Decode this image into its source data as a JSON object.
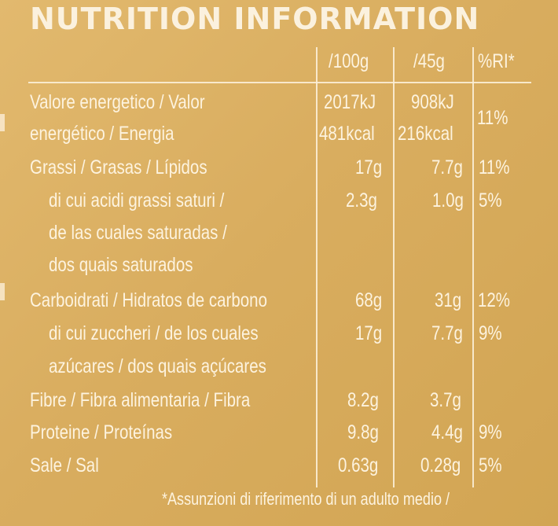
{
  "title": "NUTRITION INFORMATION",
  "header": {
    "col_100g": "/100g",
    "col_45g": "/45g",
    "col_ri": "%RI*"
  },
  "rows": [
    {
      "label_lines": [
        "Valore energetico / Valor",
        "energético / Energia"
      ],
      "v100": [
        "2017kJ",
        "481kcal"
      ],
      "v45": [
        "908kJ",
        "216kcal"
      ],
      "ri": "11%"
    },
    {
      "label_lines": [
        "Grassi / Grasas / Lípidos"
      ],
      "v100": [
        "17g"
      ],
      "v45": [
        "7.7g"
      ],
      "ri": "11%"
    },
    {
      "label_lines": [
        "di cui acidi grassi saturi /",
        "de las cuales saturadas /",
        "dos quais saturados"
      ],
      "v100": [
        "2.3g"
      ],
      "v45": [
        "1.0g"
      ],
      "ri": "5%"
    },
    {
      "label_lines": [
        "Carboidrati / Hidratos de carbono"
      ],
      "v100": [
        "68g"
      ],
      "v45": [
        "31g"
      ],
      "ri": "12%"
    },
    {
      "label_lines": [
        "di cui zuccheri / de los cuales",
        "azúcares / dos quais açúcares"
      ],
      "v100": [
        "17g"
      ],
      "v45": [
        "7.7g"
      ],
      "ri": "9%"
    },
    {
      "label_lines": [
        "Fibre / Fibra alimentaria / Fibra"
      ],
      "v100": [
        "8.2g"
      ],
      "v45": [
        "3.7g"
      ],
      "ri": ""
    },
    {
      "label_lines": [
        "Proteine / Proteínas"
      ],
      "v100": [
        "9.8g"
      ],
      "v45": [
        "4.4g"
      ],
      "ri": "9%"
    },
    {
      "label_lines": [
        "Sale / Sal"
      ],
      "v100": [
        "0.63g"
      ],
      "v45": [
        "0.28g"
      ],
      "ri": "5%"
    }
  ],
  "footnote": "*Assunzioni di riferimento di un adulto medio /"
}
